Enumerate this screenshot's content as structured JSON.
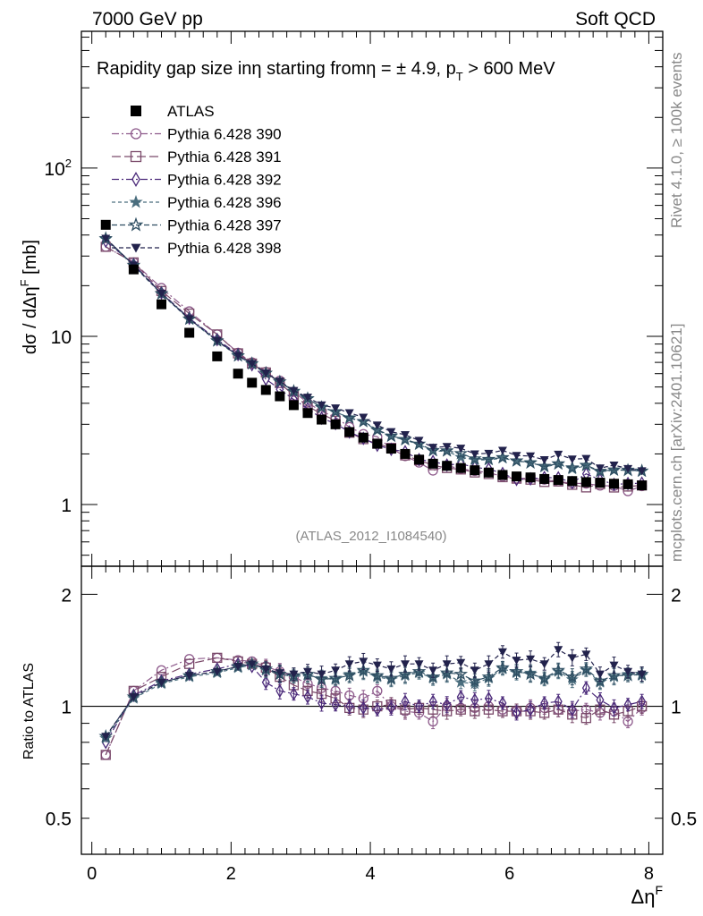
{
  "header": {
    "left": "7000 GeV pp",
    "right": "Soft QCD"
  },
  "side_text": {
    "rivet": "Rivet 4.1.0, ≥ 100k events",
    "mcplots": "mcplots.cern.ch [arXiv:2401.10621]"
  },
  "chart_data": {
    "type": "scatter",
    "title": "Rapidity gap size inη starting fromη = ± 4.9, p_T > 600 MeV",
    "title_parts": {
      "pre": "Rapidity gap size inη starting fromη = ± 4.9, p",
      "sub": "T",
      "post": " > 600 MeV"
    },
    "ylabel": "dσ / dΔηF [mb]",
    "ylabel_parts": {
      "pre": "dσ / dΔη",
      "sup": "F",
      "post": " [mb]"
    },
    "xlabel": "ΔηF",
    "xlabel_parts": {
      "pre": "Δη",
      "sup": "F"
    },
    "ratio_ylabel": "Ratio to ATLAS",
    "analysis_tag": "(ATLAS_2012_I1084540)",
    "xlim": [
      -0.15,
      8.2
    ],
    "ylim_main": [
      0.43,
      650
    ],
    "ylim_ratio": [
      0.4,
      2.38
    ],
    "log_y_main": true,
    "log_y_ratio": true,
    "x_ticks": [
      0,
      2,
      4,
      6,
      8
    ],
    "x_tick_labels": [
      "0",
      "2",
      "4",
      "6",
      "8"
    ],
    "y_main_ticks": [
      1,
      10,
      100
    ],
    "y_main_tick_labels": [
      {
        "base": "1",
        "exp": ""
      },
      {
        "base": "10",
        "exp": ""
      },
      {
        "base": "10",
        "exp": "2"
      }
    ],
    "y_ratio_ticks": [
      0.5,
      1,
      2
    ],
    "y_ratio_tick_labels": [
      "0.5",
      "1",
      "2"
    ],
    "x": [
      0.2,
      0.6,
      1.0,
      1.4,
      1.8,
      2.1,
      2.3,
      2.5,
      2.7,
      2.9,
      3.1,
      3.3,
      3.5,
      3.7,
      3.9,
      4.1,
      4.3,
      4.5,
      4.7,
      4.9,
      5.1,
      5.3,
      5.5,
      5.7,
      5.9,
      6.1,
      6.3,
      6.5,
      6.7,
      6.9,
      7.1,
      7.3,
      7.5,
      7.7,
      7.9
    ],
    "data": {
      "name": "ATLAS",
      "values": [
        46,
        25,
        15.5,
        10.5,
        7.6,
        6.0,
        5.3,
        4.8,
        4.4,
        3.9,
        3.5,
        3.2,
        3.0,
        2.7,
        2.5,
        2.3,
        2.15,
        2.0,
        1.85,
        1.75,
        1.7,
        1.65,
        1.6,
        1.55,
        1.5,
        1.47,
        1.45,
        1.42,
        1.4,
        1.38,
        1.36,
        1.35,
        1.33,
        1.32,
        1.3
      ]
    },
    "series": [
      {
        "name": "Pythia 6.428 390",
        "marker": "circle-open",
        "color": "#8e5b8c",
        "dash": "8,3,2,3",
        "ratio": [
          0.74,
          1.1,
          1.25,
          1.34,
          1.35,
          1.33,
          1.32,
          1.28,
          1.24,
          1.2,
          1.15,
          1.12,
          1.1,
          1.07,
          1.05,
          1.1,
          1.0,
          0.97,
          0.96,
          0.91,
          1.0,
          0.99,
          0.99,
          1.0,
          0.98,
          0.97,
          0.99,
          0.99,
          0.98,
          0.97,
          0.98,
          0.96,
          0.97,
          0.91,
          0.99
        ]
      },
      {
        "name": "Pythia 6.428 391",
        "marker": "square-open",
        "color": "#7a4a6a",
        "dash": "10,4",
        "ratio": [
          0.74,
          1.1,
          1.2,
          1.3,
          1.35,
          1.32,
          1.3,
          1.27,
          1.2,
          1.14,
          1.1,
          1.08,
          1.05,
          0.99,
          0.98,
          1.0,
          1.01,
          0.98,
          0.99,
          0.98,
          0.97,
          0.98,
          0.97,
          0.98,
          0.97,
          0.97,
          0.97,
          0.96,
          0.98,
          0.95,
          0.93,
          0.98,
          0.95,
          0.97,
          1.0
        ]
      },
      {
        "name": "Pythia 6.428 392",
        "marker": "diamond-open",
        "color": "#4b2a7a",
        "dash": "8,3,2,3",
        "ratio": [
          0.8,
          1.07,
          1.17,
          1.22,
          1.26,
          1.3,
          1.28,
          1.16,
          1.1,
          1.08,
          1.06,
          1.02,
          1.01,
          1.0,
          0.99,
          0.98,
          0.99,
          1.03,
          1.0,
          1.03,
          1.01,
          1.06,
          1.04,
          1.05,
          1.02,
          0.96,
          0.98,
          1.02,
          1.03,
          0.98,
          1.12,
          1.04,
          0.99,
          1.01,
          1.03
        ]
      },
      {
        "name": "Pythia 6.428 396",
        "marker": "star-filled",
        "color": "#4a6e7e",
        "dash": "4,3",
        "ratio": [
          0.82,
          1.05,
          1.15,
          1.2,
          1.23,
          1.27,
          1.29,
          1.25,
          1.22,
          1.2,
          1.21,
          1.19,
          1.18,
          1.22,
          1.24,
          1.2,
          1.18,
          1.21,
          1.23,
          1.19,
          1.22,
          1.16,
          1.15,
          1.19,
          1.26,
          1.23,
          1.23,
          1.18,
          1.24,
          1.18,
          1.25,
          1.16,
          1.2,
          1.22,
          1.21
        ]
      },
      {
        "name": "Pythia 6.428 397",
        "marker": "star-open",
        "color": "#2e4e62",
        "dash": "6,3",
        "ratio": [
          0.83,
          1.06,
          1.16,
          1.21,
          1.24,
          1.28,
          1.3,
          1.26,
          1.22,
          1.21,
          1.22,
          1.18,
          1.19,
          1.21,
          1.25,
          1.21,
          1.19,
          1.22,
          1.24,
          1.2,
          1.23,
          1.22,
          1.17,
          1.2,
          1.27,
          1.24,
          1.22,
          1.19,
          1.25,
          1.2,
          1.26,
          1.17,
          1.21,
          1.21,
          1.22
        ]
      },
      {
        "name": "Pythia 6.428 398",
        "marker": "triangle-down-filled",
        "color": "#22224c",
        "dash": "5,3",
        "ratio": [
          0.83,
          1.06,
          1.16,
          1.21,
          1.24,
          1.28,
          1.3,
          1.26,
          1.23,
          1.22,
          1.24,
          1.22,
          1.25,
          1.3,
          1.32,
          1.29,
          1.26,
          1.3,
          1.3,
          1.25,
          1.3,
          1.31,
          1.25,
          1.3,
          1.4,
          1.33,
          1.34,
          1.3,
          1.42,
          1.35,
          1.38,
          1.22,
          1.29,
          1.24,
          1.22
        ]
      }
    ]
  }
}
